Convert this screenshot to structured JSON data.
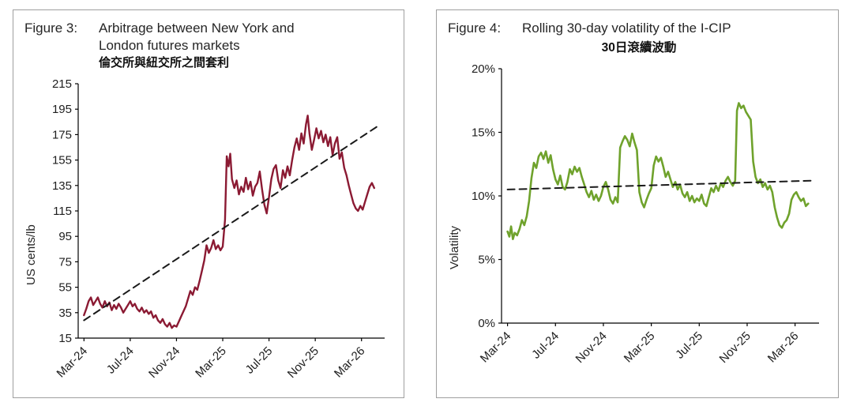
{
  "chart_data": [
    {
      "type": "line",
      "figure_label": "Figure 3:",
      "title": "Arbitrage between New York and London futures markets",
      "title_lines": [
        "Arbitrage between New York and",
        "London futures markets"
      ],
      "subtitle": "倫交所與紐交所之間套利",
      "xlabel": "",
      "ylabel": "US cents/lb",
      "ylim": [
        15,
        215
      ],
      "xlim": [
        -0.5,
        26
      ],
      "grid": false,
      "legend": "none",
      "ytick_values": [
        215,
        195,
        175,
        155,
        135,
        115,
        95,
        75,
        55,
        35,
        15
      ],
      "ytick_labels": [
        "215",
        "195",
        "175",
        "155",
        "135",
        "115",
        "95",
        "75",
        "55",
        "35",
        "15"
      ],
      "xtick_pos": [
        0,
        4,
        8,
        12,
        16,
        20,
        24
      ],
      "xticks": [
        "Mar-24",
        "Jul-24",
        "Nov-24",
        "Mar-25",
        "Jul-25",
        "Nov-25",
        "Mar-26"
      ],
      "series": [
        {
          "name": "NY-London arbitrage",
          "color": "#8b1a33",
          "width": 2.4,
          "dash": false,
          "points": [
            [
              0,
              33
            ],
            [
              0.2,
              38
            ],
            [
              0.4,
              44
            ],
            [
              0.6,
              47
            ],
            [
              0.8,
              41
            ],
            [
              1,
              44
            ],
            [
              1.2,
              47
            ],
            [
              1.4,
              42
            ],
            [
              1.6,
              39
            ],
            [
              1.8,
              44
            ],
            [
              2,
              40
            ],
            [
              2.2,
              43
            ],
            [
              2.4,
              37
            ],
            [
              2.6,
              41
            ],
            [
              2.8,
              38
            ],
            [
              3,
              42
            ],
            [
              3.2,
              39
            ],
            [
              3.4,
              35
            ],
            [
              3.6,
              38
            ],
            [
              3.8,
              41
            ],
            [
              4,
              44
            ],
            [
              4.2,
              40
            ],
            [
              4.4,
              42
            ],
            [
              4.6,
              38
            ],
            [
              4.8,
              36
            ],
            [
              5,
              39
            ],
            [
              5.2,
              35
            ],
            [
              5.4,
              37
            ],
            [
              5.6,
              34
            ],
            [
              5.8,
              36
            ],
            [
              6,
              31
            ],
            [
              6.2,
              33
            ],
            [
              6.4,
              29
            ],
            [
              6.6,
              27
            ],
            [
              6.8,
              30
            ],
            [
              7,
              26
            ],
            [
              7.2,
              24
            ],
            [
              7.4,
              27
            ],
            [
              7.6,
              23
            ],
            [
              7.8,
              25
            ],
            [
              8,
              24
            ],
            [
              8.2,
              28
            ],
            [
              8.4,
              32
            ],
            [
              8.6,
              36
            ],
            [
              8.8,
              40
            ],
            [
              9,
              46
            ],
            [
              9.2,
              52
            ],
            [
              9.4,
              49
            ],
            [
              9.6,
              55
            ],
            [
              9.8,
              53
            ],
            [
              10,
              60
            ],
            [
              10.2,
              68
            ],
            [
              10.4,
              76
            ],
            [
              10.6,
              88
            ],
            [
              10.8,
              82
            ],
            [
              11,
              86
            ],
            [
              11.2,
              92
            ],
            [
              11.4,
              85
            ],
            [
              11.6,
              88
            ],
            [
              11.8,
              84
            ],
            [
              12,
              87
            ],
            [
              12.2,
              108
            ],
            [
              12.35,
              158
            ],
            [
              12.5,
              150
            ],
            [
              12.65,
              160
            ],
            [
              12.8,
              140
            ],
            [
              13,
              133
            ],
            [
              13.2,
              139
            ],
            [
              13.4,
              128
            ],
            [
              13.6,
              134
            ],
            [
              13.8,
              130
            ],
            [
              14,
              141
            ],
            [
              14.2,
              132
            ],
            [
              14.4,
              138
            ],
            [
              14.6,
              127
            ],
            [
              14.8,
              134
            ],
            [
              15,
              137
            ],
            [
              15.2,
              146
            ],
            [
              15.4,
              132
            ],
            [
              15.6,
              120
            ],
            [
              15.8,
              113
            ],
            [
              16,
              126
            ],
            [
              16.2,
              140
            ],
            [
              16.4,
              148
            ],
            [
              16.6,
              151
            ],
            [
              16.8,
              139
            ],
            [
              17,
              133
            ],
            [
              17.2,
              147
            ],
            [
              17.4,
              141
            ],
            [
              17.6,
              150
            ],
            [
              17.8,
              143
            ],
            [
              18,
              155
            ],
            [
              18.2,
              165
            ],
            [
              18.4,
              172
            ],
            [
              18.6,
              163
            ],
            [
              18.8,
              176
            ],
            [
              19,
              168
            ],
            [
              19.2,
              183
            ],
            [
              19.35,
              190
            ],
            [
              19.5,
              176
            ],
            [
              19.7,
              163
            ],
            [
              19.9,
              171
            ],
            [
              20.1,
              180
            ],
            [
              20.3,
              172
            ],
            [
              20.5,
              178
            ],
            [
              20.7,
              169
            ],
            [
              20.9,
              175
            ],
            [
              21.1,
              166
            ],
            [
              21.3,
              173
            ],
            [
              21.5,
              159
            ],
            [
              21.7,
              168
            ],
            [
              21.9,
              173
            ],
            [
              22.1,
              156
            ],
            [
              22.3,
              161
            ],
            [
              22.5,
              149
            ],
            [
              22.7,
              143
            ],
            [
              22.9,
              135
            ],
            [
              23.1,
              128
            ],
            [
              23.3,
              121
            ],
            [
              23.5,
              117
            ],
            [
              23.7,
              115
            ],
            [
              23.9,
              119
            ],
            [
              24.1,
              116
            ],
            [
              24.3,
              122
            ],
            [
              24.5,
              128
            ],
            [
              24.7,
              134
            ],
            [
              24.9,
              137
            ],
            [
              25.1,
              133
            ]
          ]
        },
        {
          "name": "trend",
          "color": "#1a1a1a",
          "width": 2,
          "dash": true,
          "points": [
            [
              0,
              29
            ],
            [
              25.3,
              181
            ]
          ]
        }
      ]
    },
    {
      "type": "line",
      "figure_label": "Figure 4:",
      "title": "Rolling 30-day volatility of the I-CIP",
      "title_lines": [
        "Rolling 30-day volatility of the I-CIP"
      ],
      "subtitle": "30日滾續波動",
      "xlabel": "",
      "ylabel": "Volatility",
      "ylim": [
        0,
        20
      ],
      "xlim": [
        -0.5,
        26
      ],
      "grid": false,
      "legend": "none",
      "ytick_values": [
        20,
        15,
        10,
        5,
        0
      ],
      "ytick_labels": [
        "20%",
        "15%",
        "10%",
        "5%",
        "0%"
      ],
      "xtick_pos": [
        0,
        4,
        8,
        12,
        16,
        20,
        24
      ],
      "xticks": [
        "Mar-24",
        "Jul-24",
        "Nov-24",
        "Mar-25",
        "Jul-25",
        "Nov-25",
        "Mar-26"
      ],
      "series": [
        {
          "name": "30-day rolling volatility",
          "color": "#6fa22c",
          "width": 2.6,
          "dash": false,
          "points": [
            [
              0,
              7.2
            ],
            [
              0.15,
              6.8
            ],
            [
              0.3,
              7.6
            ],
            [
              0.45,
              6.6
            ],
            [
              0.6,
              7.1
            ],
            [
              0.8,
              6.9
            ],
            [
              1,
              7.4
            ],
            [
              1.2,
              8.1
            ],
            [
              1.4,
              7.7
            ],
            [
              1.6,
              8.4
            ],
            [
              1.8,
              9.6
            ],
            [
              2,
              11.4
            ],
            [
              2.2,
              12.6
            ],
            [
              2.4,
              12.2
            ],
            [
              2.6,
              13.1
            ],
            [
              2.8,
              13.4
            ],
            [
              3,
              12.9
            ],
            [
              3.2,
              13.5
            ],
            [
              3.4,
              12.6
            ],
            [
              3.6,
              13.2
            ],
            [
              3.8,
              12.1
            ],
            [
              4,
              11.3
            ],
            [
              4.2,
              10.9
            ],
            [
              4.4,
              11.6
            ],
            [
              4.6,
              10.7
            ],
            [
              4.8,
              10.5
            ],
            [
              5,
              11.1
            ],
            [
              5.2,
              12.1
            ],
            [
              5.4,
              11.7
            ],
            [
              5.6,
              12.3
            ],
            [
              5.8,
              11.9
            ],
            [
              6,
              12.2
            ],
            [
              6.2,
              11.5
            ],
            [
              6.4,
              10.9
            ],
            [
              6.6,
              10.3
            ],
            [
              6.8,
              9.9
            ],
            [
              7,
              10.4
            ],
            [
              7.2,
              9.7
            ],
            [
              7.4,
              10.1
            ],
            [
              7.6,
              9.6
            ],
            [
              7.8,
              10.0
            ],
            [
              8,
              10.7
            ],
            [
              8.2,
              11.1
            ],
            [
              8.4,
              10.5
            ],
            [
              8.6,
              9.7
            ],
            [
              8.8,
              9.4
            ],
            [
              9,
              9.9
            ],
            [
              9.2,
              9.5
            ],
            [
              9.4,
              13.8
            ],
            [
              9.6,
              14.3
            ],
            [
              9.8,
              14.7
            ],
            [
              10,
              14.4
            ],
            [
              10.2,
              13.9
            ],
            [
              10.4,
              14.9
            ],
            [
              10.6,
              14.2
            ],
            [
              10.8,
              13.6
            ],
            [
              11,
              10.3
            ],
            [
              11.2,
              9.5
            ],
            [
              11.4,
              9.1
            ],
            [
              11.6,
              9.7
            ],
            [
              11.8,
              10.2
            ],
            [
              12,
              10.6
            ],
            [
              12.2,
              12.4
            ],
            [
              12.4,
              13.1
            ],
            [
              12.6,
              12.7
            ],
            [
              12.8,
              13.0
            ],
            [
              13,
              12.3
            ],
            [
              13.2,
              11.5
            ],
            [
              13.4,
              11.9
            ],
            [
              13.6,
              11.3
            ],
            [
              13.8,
              10.7
            ],
            [
              14,
              11.1
            ],
            [
              14.2,
              10.5
            ],
            [
              14.4,
              10.9
            ],
            [
              14.6,
              10.2
            ],
            [
              14.8,
              9.9
            ],
            [
              15,
              10.3
            ],
            [
              15.2,
              9.6
            ],
            [
              15.4,
              10.0
            ],
            [
              15.6,
              9.5
            ],
            [
              15.8,
              9.8
            ],
            [
              16,
              9.6
            ],
            [
              16.2,
              10.1
            ],
            [
              16.4,
              9.4
            ],
            [
              16.6,
              9.2
            ],
            [
              16.8,
              9.9
            ],
            [
              17,
              10.6
            ],
            [
              17.2,
              10.3
            ],
            [
              17.4,
              10.8
            ],
            [
              17.6,
              10.4
            ],
            [
              17.8,
              11.0
            ],
            [
              18,
              10.7
            ],
            [
              18.2,
              11.2
            ],
            [
              18.4,
              11.5
            ],
            [
              18.6,
              11.1
            ],
            [
              18.8,
              10.8
            ],
            [
              19,
              11.2
            ],
            [
              19.15,
              16.7
            ],
            [
              19.3,
              17.3
            ],
            [
              19.5,
              16.9
            ],
            [
              19.7,
              17.1
            ],
            [
              19.9,
              16.6
            ],
            [
              20.1,
              16.3
            ],
            [
              20.3,
              16.0
            ],
            [
              20.5,
              12.7
            ],
            [
              20.7,
              11.5
            ],
            [
              20.9,
              11.0
            ],
            [
              21.1,
              11.3
            ],
            [
              21.3,
              10.7
            ],
            [
              21.5,
              11.0
            ],
            [
              21.7,
              10.5
            ],
            [
              21.9,
              10.8
            ],
            [
              22.1,
              10.3
            ],
            [
              22.3,
              9.1
            ],
            [
              22.5,
              8.3
            ],
            [
              22.7,
              7.7
            ],
            [
              22.9,
              7.5
            ],
            [
              23.1,
              7.9
            ],
            [
              23.3,
              8.1
            ],
            [
              23.5,
              8.6
            ],
            [
              23.7,
              9.7
            ],
            [
              23.9,
              10.1
            ],
            [
              24.1,
              10.3
            ],
            [
              24.3,
              9.9
            ],
            [
              24.5,
              9.6
            ],
            [
              24.7,
              9.8
            ],
            [
              24.9,
              9.2
            ],
            [
              25.1,
              9.4
            ]
          ]
        },
        {
          "name": "trend",
          "color": "#1a1a1a",
          "width": 2,
          "dash": true,
          "points": [
            [
              0,
              10.5
            ],
            [
              25.3,
              11.2
            ]
          ]
        }
      ]
    }
  ]
}
